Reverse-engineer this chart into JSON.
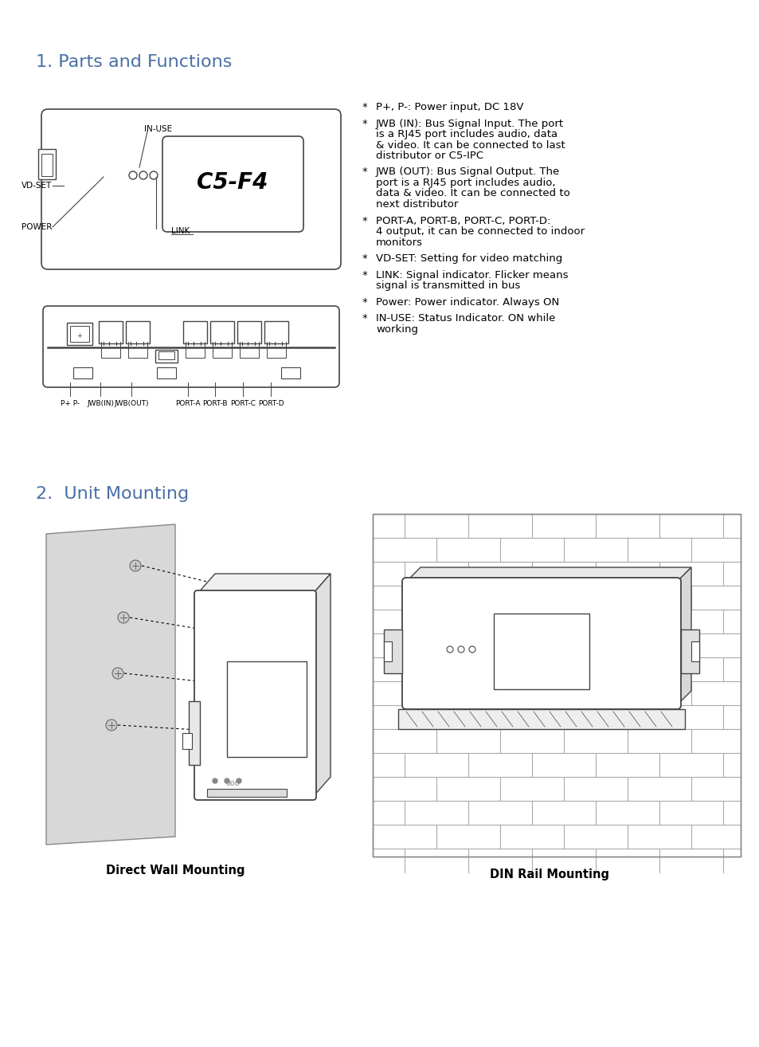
{
  "title1": "1. Parts and Functions",
  "title2": "2.  Unit Mounting",
  "title_color": "#4a6fa5",
  "title_fontsize": 16,
  "bg_color": "#ffffff",
  "text_color": "#000000",
  "diagram_edge_color": "#444444",
  "bullet_items": [
    [
      "P+, P-: Power input, DC 18V"
    ],
    [
      "JWB (IN): Bus Signal Input. The port",
      "is a RJ45 port includes audio, data",
      "& video. It can be connected to last",
      "distributor or C5-IPC"
    ],
    [
      "JWB (OUT): Bus Signal Output. The",
      "port is a RJ45 port includes audio,",
      "data & video. It can be connected to",
      "next distributor"
    ],
    [
      "PORT-A, PORT-B, PORT-C, PORT-D:",
      "4 output, it can be connected to indoor",
      "monitors"
    ],
    [
      "VD-SET: Setting for video matching"
    ],
    [
      "LINK: Signal indicator. Flicker means",
      "signal is transmitted in bus"
    ],
    [
      "Power: Power indicator. Always ON"
    ],
    [
      "IN-USE: Status Indicator. ON while",
      "working"
    ]
  ],
  "wall_mount_label": "Direct Wall Mounting",
  "din_label": "DIN Rail Mounting"
}
